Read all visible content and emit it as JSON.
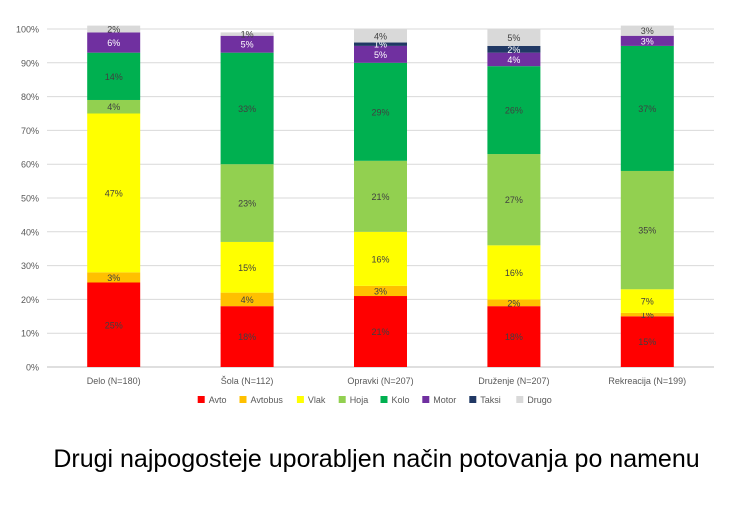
{
  "chart_data": {
    "type": "bar",
    "stacked": true,
    "percent": true,
    "categories": [
      "Delo (N=180)",
      "Šola (N=112)",
      "Opravki (N=207)",
      "Druženje (N=207)",
      "Rekreacija (N=199)"
    ],
    "series": [
      {
        "name": "Avto",
        "color": "#ff0000",
        "values": [
          25,
          18,
          21,
          18,
          15
        ],
        "labels": [
          "25%",
          "18%",
          "21%",
          "18%",
          "15%"
        ]
      },
      {
        "name": "Avtobus",
        "color": "#ffc000",
        "values": [
          3,
          4,
          3,
          2,
          1
        ],
        "labels": [
          "3%",
          "4%",
          "3%",
          "2%",
          "1%"
        ]
      },
      {
        "name": "Vlak",
        "color": "#ffff00",
        "values": [
          47,
          15,
          16,
          16,
          7
        ],
        "labels": [
          "47%",
          "15%",
          "16%",
          "16%",
          "7%"
        ]
      },
      {
        "name": "Hoja",
        "color": "#92d050",
        "values": [
          4,
          23,
          21,
          27,
          35
        ],
        "labels": [
          "4%",
          "23%",
          "21%",
          "27%",
          "35%"
        ]
      },
      {
        "name": "Kolo",
        "color": "#00b050",
        "values": [
          14,
          33,
          29,
          26,
          37
        ],
        "labels": [
          "14%",
          "33%",
          "29%",
          "26%",
          "37%"
        ]
      },
      {
        "name": "Motor",
        "color": "#7030a0",
        "values": [
          6,
          5,
          5,
          4,
          3
        ],
        "labels": [
          "6%",
          "5%",
          "5%",
          "4%",
          "3%"
        ]
      },
      {
        "name": "Taksi",
        "color": "#203864",
        "values": [
          0,
          0,
          1,
          2,
          0
        ],
        "labels": [
          "",
          "",
          "1%",
          "2%",
          ""
        ]
      },
      {
        "name": "Drugo",
        "color": "#d9d9d9",
        "values": [
          2,
          1,
          4,
          5,
          3
        ],
        "labels": [
          "2%",
          "1%",
          "4%",
          "5%",
          "3%"
        ]
      }
    ],
    "ylim": [
      0,
      100
    ],
    "yticks": [
      "0%",
      "10%",
      "20%",
      "30%",
      "40%",
      "50%",
      "60%",
      "70%",
      "80%",
      "90%",
      "100%"
    ],
    "grid": true,
    "legend": "bottom"
  },
  "caption": "Drugi najpogosteje uporabljen način potovanja po namenu"
}
